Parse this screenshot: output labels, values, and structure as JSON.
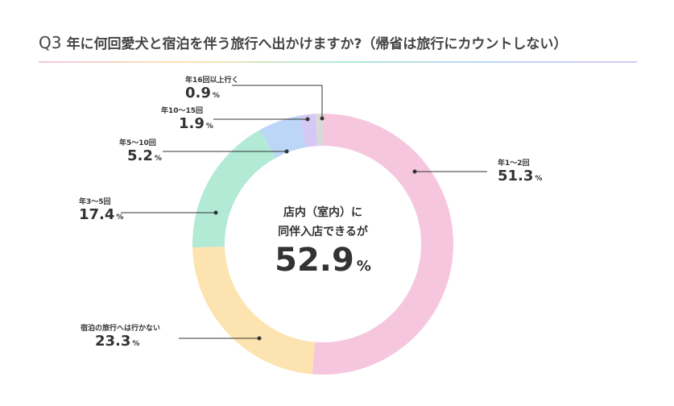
{
  "title": {
    "prefix": "Q3",
    "text": "年に何回愛犬と宿泊を伴う旅行へ出かけますか?（帰省は旅行にカウントしない）"
  },
  "center": {
    "line1": "店内（室内）に",
    "line2": "同伴入店できるが",
    "value": "52.9",
    "unit": "%"
  },
  "chart_data": {
    "type": "pie",
    "donut": true,
    "start": "top",
    "direction": "clockwise",
    "unit": "%",
    "categories": [
      "年1～2回",
      "宿泊の旅行へは行かない",
      "年3～5回",
      "年5～10回",
      "年10～15回",
      "年16回以上行く"
    ],
    "values": [
      51.3,
      23.3,
      17.4,
      5.2,
      1.9,
      0.9
    ],
    "value_labels": [
      "51.3",
      "23.3",
      "17.4",
      "5.2",
      "1.9",
      "0.9"
    ],
    "colors": [
      "#f6c6df",
      "#fde3b0",
      "#b2ead6",
      "#bcd6f8",
      "#d5c8f5",
      "#d9d9d9"
    ]
  }
}
